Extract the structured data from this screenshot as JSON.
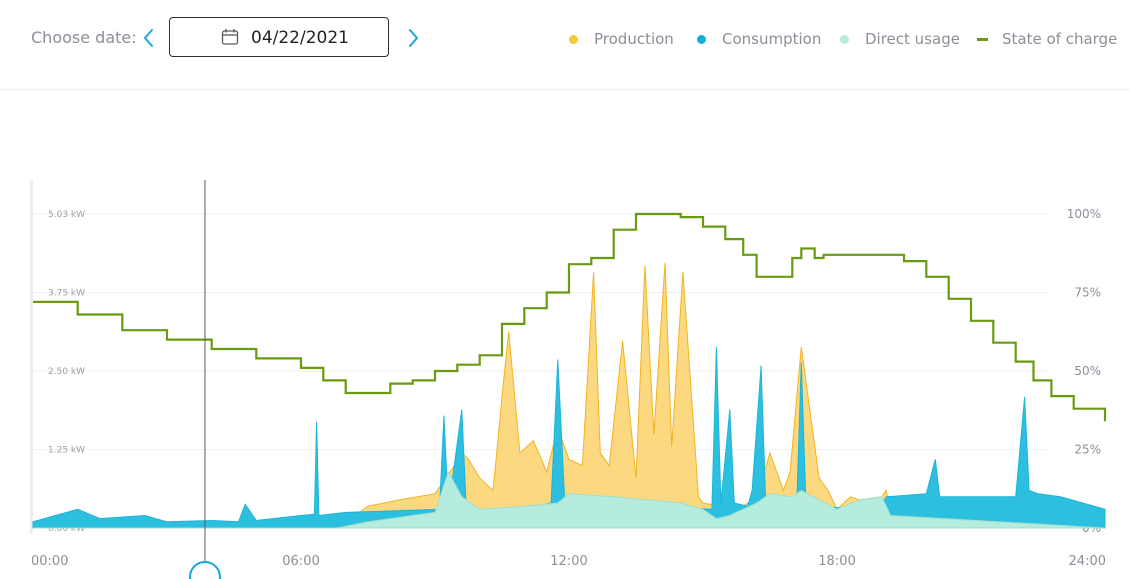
{
  "header": {
    "choose_label": "Choose date:",
    "date_value": "04/22/2021",
    "prev_icon": "chevron-left-icon",
    "next_icon": "chevron-right-icon",
    "calendar_icon": "calendar-icon"
  },
  "colors": {
    "accent": "#1aa6d6",
    "production": "#f6c83e",
    "production_fill": "#fcd77a",
    "consumption": "#2cbfe0",
    "direct_usage": "#b5ecdd",
    "state_of_charge": "#6a9a12",
    "grid": "#eef0f2"
  },
  "chart_data": {
    "type": "area",
    "title": "",
    "legend_position": "top-right",
    "grid": true,
    "x_ticks": [
      "00:00",
      "06:00",
      "12:00",
      "18:00",
      "24:00"
    ],
    "x_range_hours": [
      0,
      24
    ],
    "y_left_ticks": [
      "0.00 kW",
      "1.25 kW",
      "2.50 kW",
      "3.75 kW",
      "5.03 kW"
    ],
    "y_left_range_kw": [
      0,
      5.03
    ],
    "y_right_ticks": [
      "0%",
      "25%",
      "50%",
      "75%",
      "100%"
    ],
    "y_right_range_pct": [
      0,
      100
    ],
    "cursor_time_hours": 3.85,
    "series": [
      {
        "name": "Production",
        "unit": "kW",
        "x": [
          0,
          6.8,
          7.5,
          8.2,
          9.0,
          9.3,
          9.6,
          9.75,
          10.0,
          10.3,
          10.5,
          10.65,
          10.9,
          11.2,
          11.5,
          11.75,
          12.0,
          12.3,
          12.55,
          12.7,
          12.9,
          13.2,
          13.5,
          13.7,
          13.9,
          14.15,
          14.3,
          14.55,
          14.9,
          15.0,
          15.8,
          16.2,
          16.5,
          16.8,
          16.95,
          17.2,
          17.6,
          17.8,
          18.0,
          18.3,
          18.5,
          19.0,
          19.1,
          19.2,
          24.0
        ],
        "y": [
          0,
          0,
          0.35,
          0.45,
          0.55,
          0.85,
          1.2,
          1.1,
          0.8,
          0.6,
          2.1,
          3.15,
          1.2,
          1.4,
          0.9,
          1.6,
          1.1,
          1.0,
          4.1,
          1.2,
          1.0,
          3.0,
          0.8,
          4.2,
          1.5,
          4.25,
          1.3,
          4.1,
          0.5,
          0.4,
          0.3,
          0.5,
          1.2,
          0.6,
          0.9,
          2.9,
          0.8,
          0.6,
          0.3,
          0.5,
          0.45,
          0.5,
          0.6,
          0.3,
          0
        ]
      },
      {
        "name": "Consumption",
        "unit": "kW",
        "x": [
          0,
          1.0,
          1.5,
          2.5,
          3.0,
          4.0,
          4.6,
          4.75,
          5.0,
          6.0,
          6.3,
          6.35,
          6.4,
          7.0,
          9.1,
          9.2,
          9.3,
          9.6,
          9.7,
          9.8,
          10.5,
          11.6,
          11.75,
          11.9,
          12.0,
          14.0,
          15.2,
          15.3,
          15.4,
          15.6,
          15.7,
          16.0,
          16.1,
          16.3,
          16.4,
          17.1,
          17.2,
          17.3,
          17.5,
          17.6,
          18.5,
          19.0,
          19.1,
          20.0,
          20.2,
          20.3,
          22.0,
          22.2,
          22.3,
          22.5,
          23.0,
          24.0
        ],
        "y": [
          0.1,
          0.3,
          0.15,
          0.2,
          0.1,
          0.12,
          0.1,
          0.38,
          0.12,
          0.2,
          0.22,
          1.7,
          0.2,
          0.25,
          0.3,
          1.8,
          0.3,
          1.9,
          0.3,
          0.3,
          0.25,
          0.4,
          2.7,
          0.5,
          0.4,
          0.35,
          0.3,
          2.9,
          0.4,
          1.9,
          0.4,
          0.35,
          0.6,
          2.6,
          0.5,
          0.4,
          2.65,
          0.5,
          0.45,
          0.35,
          0.3,
          0.35,
          0.5,
          0.55,
          1.1,
          0.5,
          0.5,
          2.1,
          0.6,
          0.55,
          0.5,
          0.3
        ]
      },
      {
        "name": "Direct usage",
        "unit": "kW",
        "x": [
          0,
          6.8,
          7.5,
          9.0,
          9.3,
          9.6,
          10.0,
          11.0,
          11.75,
          12.0,
          13.0,
          14.5,
          15.0,
          15.3,
          15.6,
          16.2,
          16.5,
          17.0,
          17.2,
          18.0,
          18.5,
          19.0,
          19.2,
          24.0
        ],
        "y": [
          0,
          0,
          0.1,
          0.25,
          0.9,
          0.5,
          0.3,
          0.35,
          0.4,
          0.55,
          0.5,
          0.4,
          0.3,
          0.15,
          0.2,
          0.4,
          0.55,
          0.5,
          0.6,
          0.3,
          0.45,
          0.5,
          0.2,
          0
        ]
      },
      {
        "name": "State of charge",
        "unit": "%",
        "axis": "right",
        "x": [
          0,
          1.0,
          2.0,
          3.0,
          4.0,
          5.0,
          6.0,
          6.5,
          7.0,
          7.5,
          8.0,
          8.5,
          9.0,
          9.5,
          10.0,
          10.5,
          11.0,
          11.5,
          12.0,
          12.5,
          13.0,
          13.5,
          14.0,
          14.5,
          15.0,
          15.5,
          15.9,
          16.2,
          16.5,
          16.7,
          17.0,
          17.2,
          17.5,
          17.7,
          18.0,
          18.5,
          19.0,
          19.5,
          20.0,
          20.5,
          21.0,
          21.5,
          22.0,
          22.4,
          22.8,
          23.3,
          24.0
        ],
        "y": [
          72,
          68,
          63,
          60,
          57,
          54,
          51,
          47,
          43,
          43,
          46,
          47,
          50,
          52,
          55,
          65,
          70,
          75,
          84,
          86,
          95,
          100,
          100,
          99,
          96,
          92,
          87,
          80,
          80,
          80,
          86,
          89,
          86,
          87,
          87,
          87,
          87,
          85,
          80,
          73,
          66,
          59,
          53,
          47,
          42,
          38,
          34
        ]
      }
    ]
  }
}
